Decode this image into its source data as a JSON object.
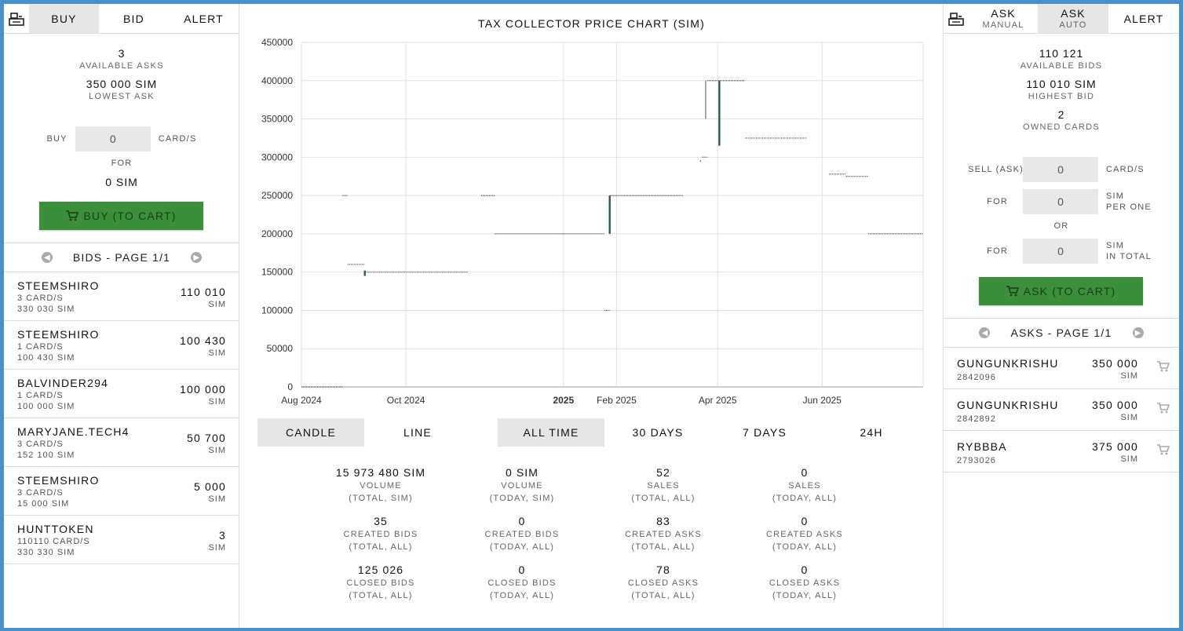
{
  "left": {
    "tabs": [
      "BUY",
      "BID",
      "ALERT"
    ],
    "available_asks": {
      "value": "3",
      "label": "AVAILABLE ASKS"
    },
    "lowest_ask": {
      "value": "350 000 SIM",
      "label": "LOWEST ASK"
    },
    "buy_label": "BUY",
    "buy_value": "0",
    "cards_label": "CARD/S",
    "for_label": "FOR",
    "for_value": "0 SIM",
    "buy_button": "BUY (TO CART)",
    "pager_title": "BIDS - PAGE 1/1",
    "bids": [
      {
        "name": "STEEMSHIRO",
        "cards": "3 CARD/S",
        "total": "330 030 SIM",
        "price": "110 010",
        "unit": "SIM"
      },
      {
        "name": "STEEMSHIRO",
        "cards": "1 CARD/S",
        "total": "100 430 SIM",
        "price": "100 430",
        "unit": "SIM"
      },
      {
        "name": "BALVINDER294",
        "cards": "1 CARD/S",
        "total": "100 000 SIM",
        "price": "100 000",
        "unit": "SIM"
      },
      {
        "name": "MARYJANE.TECH4",
        "cards": "3 CARD/S",
        "total": "152 100 SIM",
        "price": "50 700",
        "unit": "SIM"
      },
      {
        "name": "STEEMSHIRO",
        "cards": "3 CARD/S",
        "total": "15 000 SIM",
        "price": "5 000",
        "unit": "SIM"
      },
      {
        "name": "HUNTTOKEN",
        "cards": "110110 CARD/S",
        "total": "330 330 SIM",
        "price": "3",
        "unit": "SIM"
      }
    ]
  },
  "chart_data": {
    "type": "line",
    "title": "TAX COLLECTOR PRICE CHART (SIM)",
    "ylim": [
      0,
      450000
    ],
    "yticks": [
      "0",
      "50000",
      "100000",
      "150000",
      "200000",
      "250000",
      "300000",
      "350000",
      "400000",
      "450000"
    ],
    "xticks": [
      {
        "label": "Aug 2024",
        "date": "2024-08-01",
        "bold": false
      },
      {
        "label": "Oct 2024",
        "date": "2024-10-01",
        "bold": false
      },
      {
        "label": "2025",
        "date": "2025-01-01",
        "bold": true
      },
      {
        "label": "Feb 2025",
        "date": "2025-02-01",
        "bold": false
      },
      {
        "label": "Apr 2025",
        "date": "2025-04-01",
        "bold": false
      },
      {
        "label": "Jun 2025",
        "date": "2025-06-01",
        "bold": false
      }
    ],
    "xlim": [
      "2024-08-01",
      "2025-07-30"
    ],
    "segments": [
      {
        "from": "2024-08-01",
        "to": "2024-08-25",
        "y": 0
      },
      {
        "from": "2024-08-25",
        "to": "2024-08-28",
        "y": 250000
      },
      {
        "from": "2024-08-28",
        "to": "2024-09-07",
        "y": 160000
      },
      {
        "from": "2024-09-07",
        "to": "2024-11-06",
        "y": 150000
      },
      {
        "from": "2024-11-14",
        "to": "2024-11-22",
        "y": 250000
      },
      {
        "from": "2024-11-22",
        "to": "2025-01-25",
        "y": 200000
      },
      {
        "from": "2025-01-25",
        "to": "2025-01-28",
        "y": 100000
      },
      {
        "from": "2025-01-28",
        "to": "2025-03-12",
        "y": 250000
      },
      {
        "from": "2025-03-23",
        "to": "2025-03-26",
        "y": 300000
      },
      {
        "from": "2025-03-26",
        "to": "2025-04-17",
        "y": 400000
      },
      {
        "from": "2025-04-17",
        "to": "2025-05-23",
        "y": 325000
      },
      {
        "from": "2025-06-05",
        "to": "2025-06-15",
        "y": 278000
      },
      {
        "from": "2025-06-15",
        "to": "2025-06-28",
        "y": 275000
      },
      {
        "from": "2025-06-28",
        "to": "2025-07-30",
        "y": 200000
      }
    ],
    "candles": [
      {
        "date": "2024-09-07",
        "low": 145000,
        "high": 152000
      },
      {
        "date": "2025-01-28",
        "low": 200000,
        "high": 250000
      },
      {
        "date": "2025-04-02",
        "low": 315000,
        "high": 400000
      }
    ],
    "wicks": [
      {
        "date": "2025-03-25",
        "low": 350000,
        "high": 400000
      },
      {
        "date": "2025-03-22",
        "low": 294000,
        "high": 296000
      }
    ]
  },
  "modes": [
    {
      "label": "CANDLE",
      "active": true
    },
    {
      "label": "LINE",
      "active": false
    },
    {
      "label": "ALL TIME",
      "active": true
    },
    {
      "label": "30 DAYS",
      "active": false
    },
    {
      "label": "7 DAYS",
      "active": false
    },
    {
      "label": "24H",
      "active": false
    }
  ],
  "market_stats": [
    {
      "value": "15 973 480 SIM",
      "l1": "VOLUME",
      "l2": "(TOTAL, SIM)"
    },
    {
      "value": "0 SIM",
      "l1": "VOLUME",
      "l2": "(TODAY, SIM)"
    },
    {
      "value": "52",
      "l1": "SALES",
      "l2": "(TOTAL, ALL)"
    },
    {
      "value": "0",
      "l1": "SALES",
      "l2": "(TODAY, ALL)"
    },
    {
      "value": "35",
      "l1": "CREATED BIDS",
      "l2": "(TOTAL, ALL)"
    },
    {
      "value": "0",
      "l1": "CREATED BIDS",
      "l2": "(TODAY, ALL)"
    },
    {
      "value": "83",
      "l1": "CREATED ASKS",
      "l2": "(TOTAL, ALL)"
    },
    {
      "value": "0",
      "l1": "CREATED ASKS",
      "l2": "(TODAY, ALL)"
    },
    {
      "value": "125 026",
      "l1": "CLOSED BIDS",
      "l2": "(TOTAL, ALL)"
    },
    {
      "value": "0",
      "l1": "CLOSED BIDS",
      "l2": "(TODAY, ALL)"
    },
    {
      "value": "78",
      "l1": "CLOSED ASKS",
      "l2": "(TOTAL, ALL)"
    },
    {
      "value": "0",
      "l1": "CLOSED ASKS",
      "l2": "(TODAY, ALL)"
    }
  ],
  "right": {
    "tabs": [
      {
        "label": "ASK",
        "sub": "MANUAL"
      },
      {
        "label": "ASK",
        "sub": "AUTO"
      },
      {
        "label": "ALERT",
        "sub": ""
      }
    ],
    "available_bids": {
      "value": "110 121",
      "label": "AVAILABLE BIDS"
    },
    "highest_bid": {
      "value": "110 010 SIM",
      "label": "HIGHEST BID"
    },
    "owned_cards": {
      "value": "2",
      "label": "OWNED CARDS"
    },
    "sell_label": "SELL (ASK)",
    "sell_value": "0",
    "cards_label": "CARD/S",
    "for_label": "FOR",
    "per_one_value": "0",
    "per_one_l1": "SIM",
    "per_one_l2": "PER ONE",
    "or_label": "OR",
    "total_value": "0",
    "total_l1": "SIM",
    "total_l2": "IN TOTAL",
    "ask_button": "ASK (TO CART)",
    "pager_title": "ASKS - PAGE 1/1",
    "asks": [
      {
        "name": "GUNGUNKRISHU",
        "id": "2842096",
        "price": "350 000",
        "unit": "SIM"
      },
      {
        "name": "GUNGUNKRISHU",
        "id": "2842892",
        "price": "350 000",
        "unit": "SIM"
      },
      {
        "name": "RYBBBA",
        "id": "2793026",
        "price": "375 000",
        "unit": "SIM"
      }
    ]
  },
  "colors": {
    "accent_green": "#3b8f3b",
    "frame_blue": "#4a90c8",
    "candle": "#2e5d4a"
  }
}
